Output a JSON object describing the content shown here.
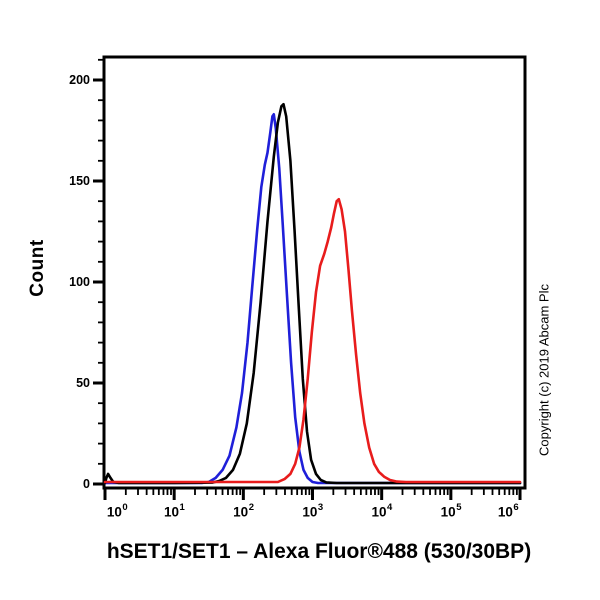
{
  "title": "hSET1/SET1 – Alexa Fluor®488 (530/30BP)",
  "copyright": "Copyright (c) 2019 Abcam Plc",
  "y_axis": {
    "label": "Count",
    "major_tick_values": [
      0,
      50,
      100,
      150,
      200
    ],
    "major_tick_labels": [
      "0",
      "50",
      "100",
      "150",
      "200"
    ],
    "minor_tick_step": 10,
    "max_count": 211
  },
  "x_axis": {
    "scale": "log",
    "tick_base": "10",
    "tick_exponents": [
      0,
      1,
      2,
      3,
      4,
      5,
      6
    ],
    "minor_multiples": [
      2,
      3,
      4,
      5,
      6,
      7,
      8,
      9
    ]
  },
  "colors": {
    "axis": "#000000",
    "black_series": "#000000",
    "blue_series": "#1f1fd9",
    "red_series": "#e81c1c",
    "background": "#ffffff"
  },
  "chart_data": {
    "type": "line",
    "title": "hSET1/SET1 – Alexa Fluor®488 (530/30BP)",
    "xlabel": "hSET1/SET1 – Alexa Fluor®488 (530/30BP)",
    "ylabel": "Count",
    "x_scale": "log10",
    "xlim_log10": [
      0,
      6
    ],
    "ylim": [
      0,
      211
    ],
    "grid": false,
    "legend": "none",
    "series": [
      {
        "name": "blue",
        "color": "#1f1fd9",
        "peak": {
          "x_log10": 2.43,
          "x_value": 270,
          "count": 183
        },
        "points_log10x_count": [
          [
            0.0,
            0.5
          ],
          [
            1.4,
            0.5
          ],
          [
            1.5,
            1
          ],
          [
            1.6,
            3
          ],
          [
            1.7,
            7
          ],
          [
            1.8,
            14
          ],
          [
            1.9,
            28
          ],
          [
            1.98,
            45
          ],
          [
            2.06,
            70
          ],
          [
            2.13,
            98
          ],
          [
            2.2,
            126
          ],
          [
            2.26,
            147
          ],
          [
            2.31,
            158
          ],
          [
            2.35,
            164
          ],
          [
            2.39,
            174
          ],
          [
            2.42,
            182
          ],
          [
            2.44,
            183
          ],
          [
            2.47,
            176
          ],
          [
            2.52,
            156
          ],
          [
            2.57,
            128
          ],
          [
            2.63,
            94
          ],
          [
            2.69,
            60
          ],
          [
            2.75,
            33
          ],
          [
            2.81,
            16
          ],
          [
            2.87,
            7
          ],
          [
            2.93,
            3
          ],
          [
            3.0,
            1
          ],
          [
            3.08,
            0.5
          ],
          [
            6.0,
            0.5
          ]
        ]
      },
      {
        "name": "black",
        "color": "#000000",
        "peak": {
          "x_log10": 2.57,
          "x_value": 370,
          "count": 188
        },
        "points_log10x_count": [
          [
            0.0,
            0.5
          ],
          [
            0.02,
            3
          ],
          [
            0.045,
            5
          ],
          [
            0.08,
            3
          ],
          [
            0.12,
            1
          ],
          [
            0.2,
            0.5
          ],
          [
            1.0,
            0.5
          ],
          [
            1.55,
            0.7
          ],
          [
            1.65,
            1.5
          ],
          [
            1.75,
            3
          ],
          [
            1.85,
            7
          ],
          [
            1.95,
            15
          ],
          [
            2.05,
            30
          ],
          [
            2.15,
            55
          ],
          [
            2.25,
            90
          ],
          [
            2.35,
            130
          ],
          [
            2.44,
            162
          ],
          [
            2.5,
            179
          ],
          [
            2.55,
            187
          ],
          [
            2.58,
            188
          ],
          [
            2.62,
            182
          ],
          [
            2.68,
            160
          ],
          [
            2.74,
            126
          ],
          [
            2.8,
            88
          ],
          [
            2.86,
            52
          ],
          [
            2.92,
            26
          ],
          [
            2.98,
            12
          ],
          [
            3.05,
            5
          ],
          [
            3.12,
            2
          ],
          [
            3.2,
            0.8
          ],
          [
            3.35,
            0.5
          ],
          [
            6.0,
            0.5
          ]
        ]
      },
      {
        "name": "red",
        "color": "#e81c1c",
        "peak": {
          "x_log10": 3.37,
          "x_value": 2300,
          "count": 141
        },
        "points_log10x_count": [
          [
            0.0,
            1
          ],
          [
            2.5,
            1
          ],
          [
            2.6,
            2.5
          ],
          [
            2.68,
            5
          ],
          [
            2.75,
            10
          ],
          [
            2.81,
            18
          ],
          [
            2.87,
            32
          ],
          [
            2.93,
            52
          ],
          [
            2.99,
            75
          ],
          [
            3.05,
            95
          ],
          [
            3.11,
            108
          ],
          [
            3.17,
            114
          ],
          [
            3.22,
            120
          ],
          [
            3.27,
            127
          ],
          [
            3.31,
            134
          ],
          [
            3.35,
            140
          ],
          [
            3.38,
            141
          ],
          [
            3.42,
            136
          ],
          [
            3.47,
            125
          ],
          [
            3.52,
            106
          ],
          [
            3.57,
            86
          ],
          [
            3.63,
            64
          ],
          [
            3.69,
            45
          ],
          [
            3.75,
            30
          ],
          [
            3.82,
            18
          ],
          [
            3.89,
            10
          ],
          [
            3.96,
            6
          ],
          [
            4.04,
            3.5
          ],
          [
            4.12,
            2
          ],
          [
            4.22,
            1.2
          ],
          [
            4.35,
            1
          ],
          [
            6.0,
            1
          ]
        ]
      }
    ]
  }
}
